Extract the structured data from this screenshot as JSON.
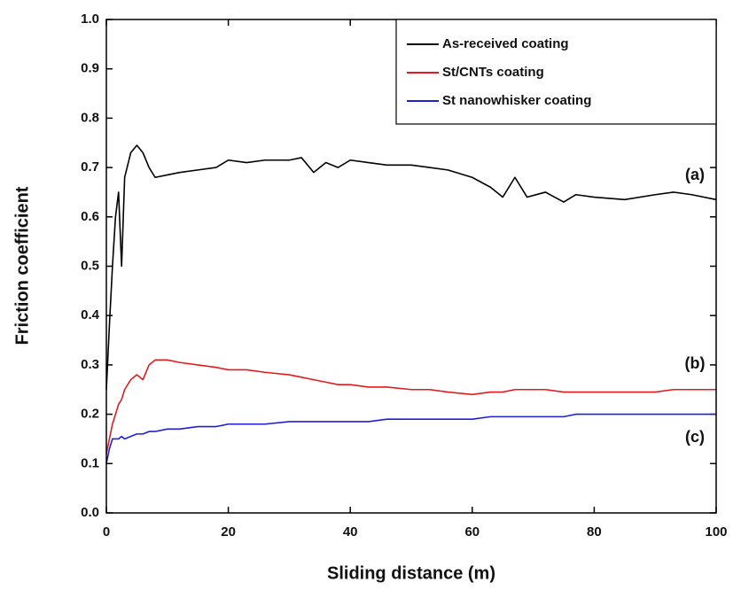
{
  "chart_data": {
    "type": "line",
    "x_label": "Sliding distance (m)",
    "y_label": "Friction coefficient",
    "x": [
      0,
      0.5,
      1,
      1.5,
      2,
      2.5,
      3,
      4,
      5,
      6,
      7,
      8,
      10,
      12,
      15,
      18,
      20,
      23,
      26,
      30,
      32,
      34,
      36,
      38,
      40,
      43,
      46,
      50,
      53,
      56,
      60,
      63,
      65,
      67,
      69,
      72,
      75,
      77,
      80,
      85,
      90,
      93,
      96,
      100
    ],
    "series": [
      {
        "name": "As-received coating",
        "color": "#000000",
        "values": [
          0.25,
          0.38,
          0.5,
          0.6,
          0.65,
          0.5,
          0.68,
          0.73,
          0.745,
          0.73,
          0.7,
          0.68,
          0.685,
          0.69,
          0.695,
          0.7,
          0.715,
          0.71,
          0.715,
          0.715,
          0.72,
          0.69,
          0.71,
          0.7,
          0.715,
          0.71,
          0.705,
          0.705,
          0.7,
          0.695,
          0.68,
          0.66,
          0.64,
          0.68,
          0.64,
          0.65,
          0.63,
          0.645,
          0.64,
          0.635,
          0.645,
          0.65,
          0.645,
          0.635
        ]
      },
      {
        "name": "St/CNTs coating",
        "color": "#e41a1c",
        "values": [
          0.12,
          0.15,
          0.18,
          0.2,
          0.22,
          0.23,
          0.25,
          0.27,
          0.28,
          0.27,
          0.3,
          0.31,
          0.31,
          0.305,
          0.3,
          0.295,
          0.29,
          0.29,
          0.285,
          0.28,
          0.275,
          0.27,
          0.265,
          0.26,
          0.26,
          0.255,
          0.255,
          0.25,
          0.25,
          0.245,
          0.24,
          0.245,
          0.245,
          0.25,
          0.25,
          0.25,
          0.245,
          0.245,
          0.245,
          0.245,
          0.245,
          0.25,
          0.25,
          0.25
        ]
      },
      {
        "name": "St nanowhisker coating",
        "color": "#1f1fd6",
        "values": [
          0.1,
          0.13,
          0.15,
          0.15,
          0.15,
          0.155,
          0.15,
          0.155,
          0.16,
          0.16,
          0.165,
          0.165,
          0.17,
          0.17,
          0.175,
          0.175,
          0.18,
          0.18,
          0.18,
          0.185,
          0.185,
          0.185,
          0.185,
          0.185,
          0.185,
          0.185,
          0.19,
          0.19,
          0.19,
          0.19,
          0.19,
          0.195,
          0.195,
          0.195,
          0.195,
          0.195,
          0.195,
          0.2,
          0.2,
          0.2,
          0.2,
          0.2,
          0.2,
          0.2
        ]
      }
    ],
    "annotations": [
      "(a)",
      "(b)",
      "(c)"
    ],
    "xlim": [
      0,
      100
    ],
    "ylim": [
      0,
      1
    ],
    "xticks": [
      0,
      20,
      40,
      60,
      80,
      100
    ],
    "yticks": [
      {
        "value": 0,
        "label": "0.0"
      },
      0.1,
      0.2,
      0.3,
      0.4,
      0.5,
      0.6,
      0.7,
      0.8,
      0.9,
      {
        "value": 1,
        "label": "1.0"
      }
    ],
    "grid": false,
    "legend": "upper right"
  }
}
